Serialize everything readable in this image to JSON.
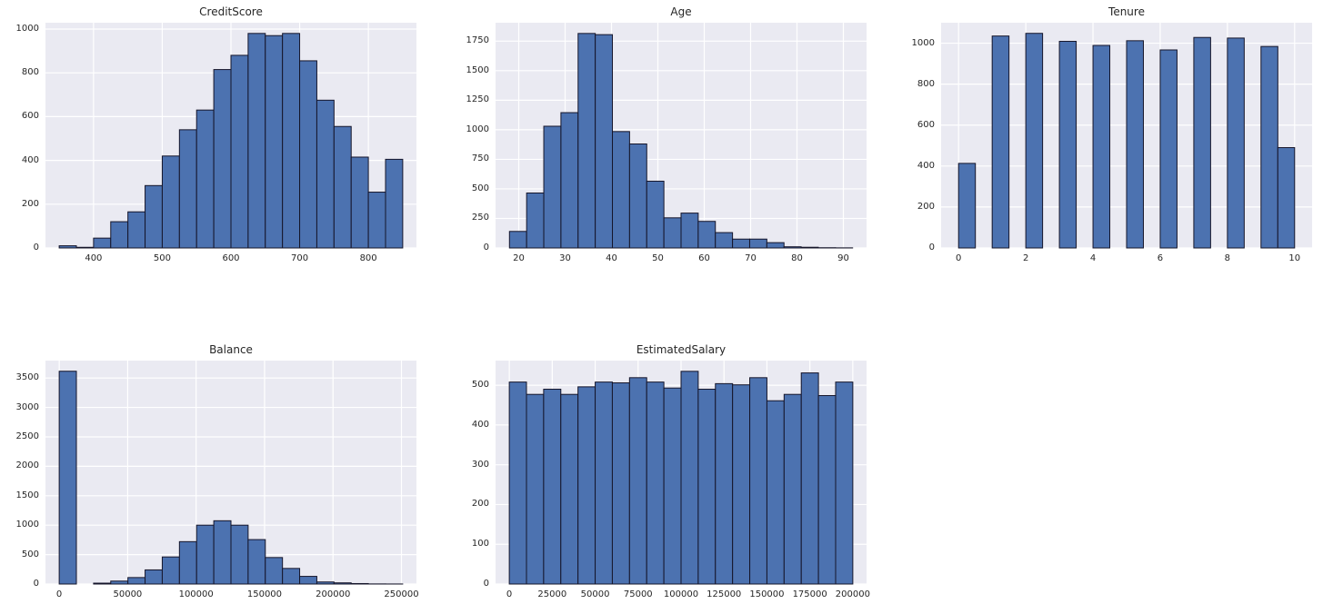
{
  "figure": {
    "background": "#ffffff",
    "plot_bg": "#EAEAF2",
    "grid_color": "#ffffff",
    "bar_color": "#4C72B0",
    "bar_edge": "#15152a",
    "text_color": "#262626"
  },
  "chart_data": [
    {
      "type": "bar",
      "title": "CreditScore",
      "xlabel": "",
      "ylabel": "",
      "grid": true,
      "bin_edges": [
        350,
        375,
        400,
        425,
        450,
        475,
        500,
        525,
        550,
        575,
        600,
        625,
        650,
        675,
        700,
        725,
        750,
        775,
        800,
        825,
        850
      ],
      "counts": [
        10,
        3,
        45,
        120,
        165,
        285,
        420,
        540,
        630,
        815,
        880,
        980,
        970,
        980,
        855,
        675,
        555,
        415,
        255,
        405
      ],
      "xlim": [
        330,
        870
      ],
      "ylim": [
        0,
        1029
      ],
      "x_ticks": [
        400,
        500,
        600,
        700,
        800
      ],
      "x_tick_labels": [
        "400",
        "500",
        "600",
        "700",
        "800"
      ],
      "y_ticks": [
        0,
        200,
        400,
        600,
        800,
        1000
      ],
      "y_tick_labels": [
        "0",
        "200",
        "400",
        "600",
        "800",
        "1000"
      ]
    },
    {
      "type": "bar",
      "title": "Age",
      "xlabel": "",
      "ylabel": "",
      "grid": true,
      "bin_edges": [
        18,
        21.7,
        25.4,
        29.1,
        32.8,
        36.5,
        40.2,
        43.9,
        47.6,
        51.3,
        55,
        58.7,
        62.4,
        66.1,
        69.8,
        73.5,
        77.2,
        80.9,
        84.6,
        88.3,
        92
      ],
      "counts": [
        140,
        465,
        1030,
        1145,
        1815,
        1805,
        985,
        880,
        565,
        255,
        295,
        225,
        130,
        75,
        75,
        45,
        10,
        6,
        2,
        1
      ],
      "xlim": [
        15,
        95
      ],
      "ylim": [
        0,
        1906
      ],
      "x_ticks": [
        20,
        30,
        40,
        50,
        60,
        70,
        80,
        90
      ],
      "x_tick_labels": [
        "20",
        "30",
        "40",
        "50",
        "60",
        "70",
        "80",
        "90"
      ],
      "y_ticks": [
        0,
        250,
        500,
        750,
        1000,
        1250,
        1500,
        1750
      ],
      "y_tick_labels": [
        "0",
        "250",
        "500",
        "750",
        "1000",
        "1250",
        "1500",
        "1750"
      ]
    },
    {
      "type": "bar",
      "title": "Tenure",
      "xlabel": "",
      "ylabel": "",
      "grid": true,
      "bin_edges": [
        0,
        0.5,
        1,
        1.5,
        2,
        2.5,
        3,
        3.5,
        4,
        4.5,
        5,
        5.5,
        6,
        6.5,
        7,
        7.5,
        8,
        8.5,
        9,
        9.5,
        10
      ],
      "counts": [
        413,
        0,
        1035,
        0,
        1048,
        0,
        1009,
        0,
        989,
        0,
        1012,
        0,
        967,
        0,
        1028,
        0,
        1025,
        0,
        984,
        490
      ],
      "xlim": [
        -0.52,
        10.52
      ],
      "ylim": [
        0,
        1100
      ],
      "x_ticks": [
        0,
        2,
        4,
        6,
        8,
        10
      ],
      "x_tick_labels": [
        "0",
        "2",
        "4",
        "6",
        "8",
        "10"
      ],
      "y_ticks": [
        0,
        200,
        400,
        600,
        800,
        1000
      ],
      "y_tick_labels": [
        "0",
        "200",
        "400",
        "600",
        "800",
        "1000"
      ]
    },
    {
      "type": "bar",
      "title": "Balance",
      "xlabel": "",
      "ylabel": "",
      "grid": true,
      "bin_edges": [
        0,
        12545,
        25090,
        37635,
        50180,
        62725,
        75270,
        87815,
        100360,
        112905,
        125450,
        137995,
        150540,
        163085,
        175630,
        188175,
        200720,
        213265,
        225810,
        238355,
        250900
      ],
      "counts": [
        3615,
        0,
        15,
        50,
        110,
        240,
        460,
        720,
        1000,
        1075,
        1000,
        755,
        450,
        265,
        130,
        35,
        20,
        8,
        2,
        1
      ],
      "xlim": [
        -10040,
        260940
      ],
      "ylim": [
        0,
        3796
      ],
      "x_ticks": [
        0,
        50000,
        100000,
        150000,
        200000,
        250000
      ],
      "x_tick_labels": [
        "0",
        "50000",
        "100000",
        "150000",
        "200000",
        "250000"
      ],
      "y_ticks": [
        0,
        500,
        1000,
        1500,
        2000,
        2500,
        3000,
        3500
      ],
      "y_tick_labels": [
        "0",
        "500",
        "1000",
        "1500",
        "2000",
        "2500",
        "3000",
        "3500"
      ]
    },
    {
      "type": "bar",
      "title": "EstimatedSalary",
      "xlabel": "",
      "ylabel": "",
      "grid": true,
      "bin_edges": [
        0,
        10000,
        20000,
        30000,
        40000,
        50000,
        60000,
        70000,
        80000,
        90000,
        100000,
        110000,
        120000,
        130000,
        140000,
        150000,
        160000,
        170000,
        180000,
        190000,
        200000
      ],
      "counts": [
        508,
        477,
        490,
        477,
        496,
        508,
        506,
        519,
        508,
        493,
        535,
        490,
        504,
        501,
        519,
        461,
        477,
        531,
        474,
        508
      ],
      "xlim": [
        -8000,
        208000
      ],
      "ylim": [
        0,
        562
      ],
      "x_ticks": [
        0,
        25000,
        50000,
        75000,
        100000,
        125000,
        150000,
        175000,
        200000
      ],
      "x_tick_labels": [
        "0",
        "25000",
        "50000",
        "75000",
        "100000",
        "125000",
        "150000",
        "175000",
        "200000"
      ],
      "y_ticks": [
        0,
        100,
        200,
        300,
        400,
        500
      ],
      "y_tick_labels": [
        "0",
        "100",
        "200",
        "300",
        "400",
        "500"
      ]
    }
  ]
}
